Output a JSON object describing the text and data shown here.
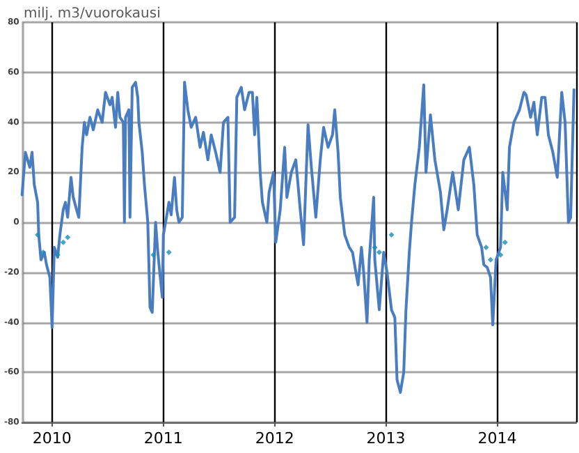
{
  "chart_data": {
    "type": "line",
    "ylabel": "milj. m3/vuorokausi",
    "xlim": [
      2009.73,
      2014.71
    ],
    "xticks": [
      2010,
      2011,
      2012,
      2013,
      2014
    ],
    "ylim": [
      -80,
      80
    ],
    "yticks": [
      -80,
      -60,
      -40,
      -20,
      0,
      20,
      40,
      60,
      80
    ],
    "grid": true,
    "marker": "none",
    "line_style": "solid",
    "series": [
      {
        "color": "#4a7cc0",
        "x": [
          2009.73,
          2009.76,
          2009.8,
          2009.82,
          2009.84,
          2009.87,
          2009.88,
          2009.9,
          2009.93,
          2009.95,
          2009.98,
          2010.0,
          2010.02,
          2010.05,
          2010.07,
          2010.1,
          2010.12,
          2010.14,
          2010.17,
          2010.19,
          2010.22,
          2010.24,
          2010.27,
          2010.29,
          2010.31,
          2010.34,
          2010.37,
          2010.41,
          2010.45,
          2010.48,
          2010.52,
          2010.54,
          2010.57,
          2010.59,
          2010.61,
          2010.64,
          2010.65,
          2010.66,
          2010.69,
          2010.7,
          2010.72,
          2010.75,
          2010.77,
          2010.78,
          2010.81,
          2010.83,
          2010.86,
          2010.88,
          2010.9,
          2010.93,
          2010.95,
          2010.99,
          2011.0,
          2011.02,
          2011.05,
          2011.07,
          2011.1,
          2011.12,
          2011.14,
          2011.17,
          2011.19,
          2011.22,
          2011.25,
          2011.29,
          2011.33,
          2011.36,
          2011.4,
          2011.43,
          2011.47,
          2011.51,
          2011.54,
          2011.58,
          2011.6,
          2011.64,
          2011.66,
          2011.7,
          2011.73,
          2011.77,
          2011.8,
          2011.82,
          2011.84,
          2011.87,
          2011.89,
          2011.93,
          2011.95,
          2011.99,
          2012.01,
          2012.05,
          2012.09,
          2012.11,
          2012.15,
          2012.19,
          2012.21,
          2012.23,
          2012.26,
          2012.3,
          2012.33,
          2012.37,
          2012.41,
          2012.44,
          2012.48,
          2012.52,
          2012.54,
          2012.57,
          2012.59,
          2012.63,
          2012.67,
          2012.7,
          2012.73,
          2012.75,
          2012.78,
          2012.8,
          2012.83,
          2012.85,
          2012.89,
          2012.9,
          2012.94,
          2012.98,
          2013.01,
          2013.05,
          2013.08,
          2013.1,
          2013.13,
          2013.16,
          2013.18,
          2013.21,
          2013.23,
          2013.26,
          2013.3,
          2013.34,
          2013.36,
          2013.4,
          2013.44,
          2013.49,
          2013.52,
          2013.55,
          2013.6,
          2013.65,
          2013.7,
          2013.75,
          2013.79,
          2013.82,
          2013.86,
          2013.88,
          2013.91,
          2013.94,
          2013.96,
          2013.99,
          2014.03,
          2014.05,
          2014.09,
          2014.11,
          2014.15,
          2014.2,
          2014.24,
          2014.26,
          2014.3,
          2014.33,
          2014.36,
          2014.4,
          2014.43,
          2014.46,
          2014.5,
          2014.54,
          2014.58,
          2014.61,
          2014.64,
          2014.66,
          2014.69
        ],
        "values": [
          11,
          28,
          22,
          28,
          15,
          8,
          -5,
          -15,
          -12,
          -17,
          -22,
          -42,
          -10,
          -14,
          -5,
          5,
          8,
          2,
          18,
          10,
          5,
          2,
          30,
          40,
          35,
          42,
          37,
          45,
          40,
          52,
          47,
          50,
          38,
          52,
          42,
          40,
          0,
          42,
          45,
          2,
          54,
          56,
          50,
          40,
          28,
          15,
          0,
          -34,
          -36,
          0,
          -12,
          -30,
          -5,
          0,
          8,
          3,
          18,
          5,
          0,
          2,
          56,
          45,
          38,
          42,
          30,
          36,
          25,
          35,
          28,
          20,
          40,
          42,
          0,
          2,
          50,
          54,
          45,
          52,
          52,
          35,
          50,
          20,
          8,
          0,
          12,
          20,
          -8,
          5,
          30,
          10,
          20,
          25,
          15,
          5,
          -9,
          39,
          22,
          2,
          25,
          38,
          30,
          35,
          45,
          28,
          10,
          -5,
          -10,
          -12,
          -20,
          -25,
          -10,
          -20,
          -40,
          -15,
          10,
          -15,
          -35,
          -12,
          -20,
          -35,
          -38,
          -63,
          -68,
          -60,
          -35,
          -12,
          0,
          15,
          30,
          55,
          20,
          43,
          25,
          12,
          -3,
          5,
          20,
          5,
          25,
          30,
          15,
          -5,
          -10,
          -17,
          -18,
          -22,
          -41,
          -15,
          -10,
          20,
          5,
          30,
          40,
          45,
          52,
          51,
          42,
          48,
          35,
          50,
          50,
          35,
          28,
          18,
          52,
          40,
          0,
          2,
          53
        ]
      },
      {
        "type": "scatter",
        "color": "#1a8cb5",
        "marker": "diamond",
        "x": [
          2009.87,
          2009.92,
          2010.05,
          2010.1,
          2010.14,
          2010.91,
          2011.05,
          2012.9,
          2012.94,
          2013.05,
          2013.9,
          2013.94,
          2014.03,
          2014.07
        ],
        "values": [
          -5,
          -12,
          -13,
          -8,
          -6,
          -13,
          -12,
          -10,
          -12,
          -5,
          -10,
          -15,
          -13,
          -8
        ]
      }
    ]
  }
}
